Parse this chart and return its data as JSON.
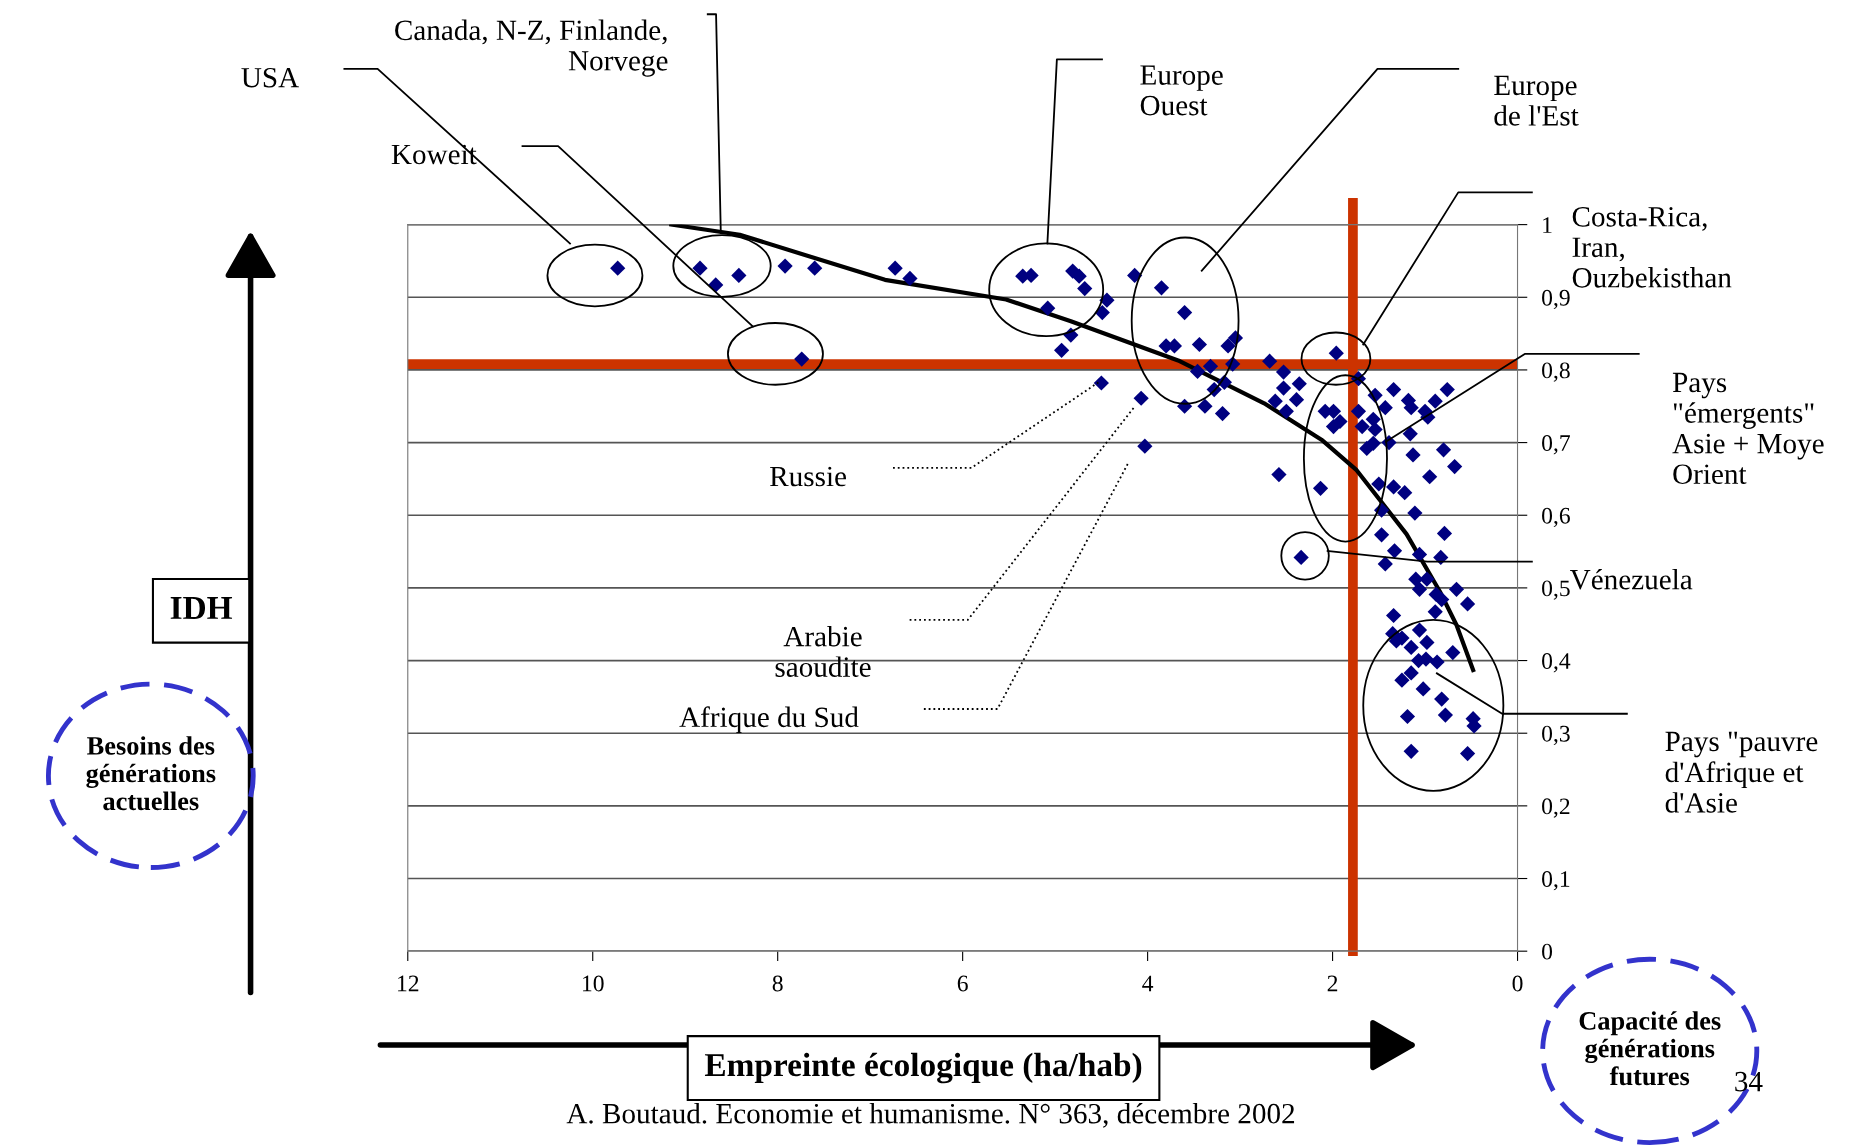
{
  "chart_data": {
    "type": "scatter",
    "xlabel": "Empreinte écologique (ha/hab)",
    "ylabel": "IDH",
    "xlim": [
      12,
      0
    ],
    "xticks": [
      12,
      10,
      8,
      6,
      4,
      2,
      0
    ],
    "ylim": [
      0,
      1
    ],
    "yticks": [
      0,
      {
        "value": 0.1,
        "label": "0,1"
      },
      {
        "value": 0.2,
        "label": "0,2"
      },
      {
        "value": 0.3,
        "label": "0,3"
      },
      {
        "value": 0.4,
        "label": "0,4"
      },
      {
        "value": 0.5,
        "label": "0,5"
      },
      {
        "value": 0.6,
        "label": "0,6"
      },
      {
        "value": 0.7,
        "label": "0,7"
      },
      {
        "value": 0.8,
        "label": "0,8"
      },
      {
        "value": 0.9,
        "label": "0,9"
      },
      1
    ],
    "grid": "y",
    "legend": false,
    "marker": "diamond",
    "series": [
      {
        "color": "#000080",
        "x": [
          9.73,
          8.84,
          8.67,
          8.42,
          7.92,
          7.6,
          7.74,
          6.73,
          6.57,
          5.35,
          5.26,
          4.81,
          4.74,
          4.68,
          5.08,
          4.44,
          4.49,
          4.83,
          4.93,
          4.14,
          3.85,
          3.6,
          3.8,
          3.71,
          3.44,
          3.13,
          3.05,
          3.08,
          3.32,
          3.46,
          3.28,
          3.17,
          4.5,
          4.07,
          4.03,
          3.6,
          3.38,
          3.19,
          2.68,
          2.53,
          2.53,
          2.36,
          2.62,
          2.39,
          2.5,
          1.96,
          1.72,
          1.54,
          1.34,
          1.18,
          1.15,
          0.89,
          0.76,
          1.0,
          0.97,
          1.43,
          2.08,
          1.99,
          1.92,
          1.99,
          1.72,
          1.68,
          1.56,
          1.54,
          1.56,
          1.63,
          1.39,
          1.16,
          1.13,
          0.8,
          0.68,
          0.95,
          2.58,
          2.13,
          1.5,
          1.34,
          1.22,
          1.47,
          1.11,
          1.47,
          0.79,
          2.34,
          1.33,
          1.43,
          1.06,
          0.83,
          1.1,
          1.06,
          0.98,
          0.88,
          0.82,
          0.66,
          0.54,
          0.89,
          1.34,
          1.06,
          1.35,
          1.25,
          1.31,
          0.98,
          1.15,
          0.7,
          1.07,
          0.99,
          0.87,
          1.25,
          1.15,
          1.02,
          0.82,
          1.19,
          0.78,
          0.48,
          0.47,
          1.15,
          0.54
        ],
        "values": [
          0.94,
          0.94,
          0.917,
          0.93,
          0.943,
          0.94,
          0.815,
          0.94,
          0.926,
          0.929,
          0.93,
          0.936,
          0.929,
          0.912,
          0.885,
          0.896,
          0.879,
          0.848,
          0.827,
          0.93,
          0.913,
          0.879,
          0.833,
          0.833,
          0.835,
          0.833,
          0.844,
          0.808,
          0.805,
          0.798,
          0.773,
          0.783,
          0.782,
          0.761,
          0.695,
          0.75,
          0.75,
          0.74,
          0.812,
          0.797,
          0.775,
          0.781,
          0.757,
          0.759,
          0.743,
          0.823,
          0.788,
          0.765,
          0.773,
          0.758,
          0.748,
          0.757,
          0.773,
          0.743,
          0.735,
          0.748,
          0.743,
          0.743,
          0.729,
          0.722,
          0.743,
          0.722,
          0.732,
          0.718,
          0.699,
          0.692,
          0.7,
          0.712,
          0.683,
          0.69,
          0.667,
          0.653,
          0.656,
          0.637,
          0.643,
          0.639,
          0.631,
          0.607,
          0.603,
          0.573,
          0.575,
          0.542,
          0.551,
          0.533,
          0.546,
          0.542,
          0.512,
          0.498,
          0.512,
          0.491,
          0.484,
          0.498,
          0.478,
          0.467,
          0.462,
          0.442,
          0.437,
          0.431,
          0.427,
          0.425,
          0.418,
          0.411,
          0.4,
          0.402,
          0.398,
          0.373,
          0.383,
          0.361,
          0.347,
          0.323,
          0.325,
          0.32,
          0.31,
          0.275,
          0.272
        ]
      },
      {
        "type": "line",
        "color": "#000000",
        "marker": "none",
        "line_style": "solid",
        "x": [
          9.15,
          8.41,
          6.84,
          5.53,
          4.83,
          3.67,
          2.74,
          2.12,
          1.74,
          1.2,
          0.84,
          0.66,
          0.48
        ],
        "values": [
          1.0,
          0.986,
          0.924,
          0.897,
          0.867,
          0.813,
          0.754,
          0.704,
          0.662,
          0.574,
          0.495,
          0.449,
          0.387
        ]
      }
    ],
    "ref_lines": [
      {
        "axis": "x",
        "value": 1.78,
        "label": null,
        "color": "#cc3300",
        "line_style": "solid"
      },
      {
        "axis": "y",
        "value": 0.808,
        "label": null,
        "color": "#cc3300",
        "line_style": "solid"
      }
    ],
    "annotations": [
      "USA",
      "Canada, N-Z, Finlande,\nNorvege",
      "Koweit",
      "Europe\nOuest",
      "Europe\nde l'Est",
      "Costa-Rica,\nIran,\nOuzbekisthan",
      "Pays\n\"émergents\"\nAsie + Moye\nOrient",
      "Vénezuela",
      "Pays \"pauvre\nd'Afrique et\nd'Asie",
      "Russie",
      "Arabie\nsaoudite",
      "Afrique du Sud",
      "Besoins des\ngénérations\nactuelles",
      "Capacité des\ngénérations\nfutures",
      "34",
      "A. Boutaud. Economie et humanisme. N° 363, décembre 2002"
    ]
  }
}
